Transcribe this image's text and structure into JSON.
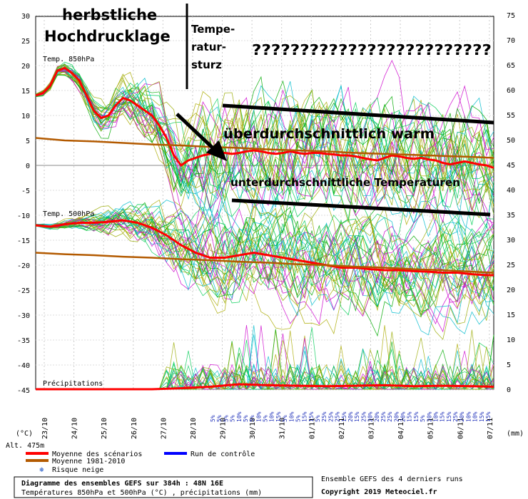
{
  "chart_data": {
    "type": "line",
    "title": "Diagramme des ensembles GEFS sur 384h : 48N 16E",
    "subtitle": "Températures 850hPa et 500hPa (°C) , précipitations (mm)",
    "source_note": "Ensemble GEFS des 4 derniers runs",
    "copyright": "Copyright 2019 Meteociel.fr",
    "altitude": "Alt. 475m",
    "left_unit": "(°C)",
    "right_unit": "(mm)",
    "left_ticks": [
      30,
      25,
      20,
      15,
      10,
      5,
      0,
      -5,
      -10,
      -15,
      -20,
      -25,
      -30,
      -35,
      -40,
      -45
    ],
    "right_ticks": [
      75,
      70,
      65,
      60,
      55,
      50,
      45,
      40,
      35,
      30,
      25,
      20,
      15,
      10,
      5,
      0
    ],
    "x_dates": [
      "23/10",
      "24/10",
      "25/10",
      "26/10",
      "27/10",
      "28/10",
      "29/10",
      "30/10",
      "31/10",
      "01/11",
      "02/11",
      "03/11",
      "04/11",
      "05/11",
      "06/11",
      "07/11"
    ],
    "labels": {
      "t850": "Temp. 850hPa",
      "t500": "Temp. 500hPa",
      "precip": "Précipitations"
    },
    "legend": {
      "mean": "Moyenne des scénarios",
      "control": "Run de contrôle",
      "climate": "Moyenne 1981-2010",
      "snow": "Risque neige"
    },
    "snow_risk": [
      "5%",
      "5%",
      "5%",
      "5%",
      "10%",
      "5%",
      "5%",
      "10%",
      "5%",
      "10%",
      "15%",
      "5%",
      "10%",
      "5%",
      "15%",
      "15%",
      "5%",
      "25%",
      "25%",
      "25%",
      "15%",
      "20%",
      "15%",
      "25%",
      "20%",
      "20%",
      "25%",
      "25%",
      "20%",
      "20%",
      "15%",
      "15%",
      "5%",
      "20%",
      "10%",
      "15%",
      "15%",
      "25%",
      "20%",
      "10%",
      "10%",
      "15%",
      "15%"
    ],
    "series": [
      {
        "name": "Moyenne des scénarios",
        "level": "850hPa",
        "x": [
          0,
          1,
          2,
          3,
          4,
          5,
          6,
          7,
          8,
          9,
          10,
          11,
          12,
          13,
          14,
          15,
          16,
          17,
          18,
          19,
          20,
          21,
          22,
          23,
          24,
          25,
          26,
          27,
          28,
          29,
          30,
          31,
          32,
          33,
          34,
          35,
          36,
          37,
          38,
          39,
          40,
          41,
          42,
          43,
          44,
          45,
          46,
          47,
          48,
          49,
          50,
          51,
          52,
          53,
          54,
          55,
          56,
          57,
          58,
          59,
          60,
          61,
          62,
          63
        ],
        "values": [
          14,
          14.5,
          16,
          19,
          19.5,
          18.5,
          17,
          14,
          11,
          9.5,
          10,
          12,
          13.5,
          13,
          12,
          11,
          10,
          8,
          5.5,
          2,
          0,
          1,
          1.5,
          2,
          2.3,
          2.5,
          2.5,
          2.3,
          2.5,
          2.8,
          3,
          2.8,
          2.5,
          2.3,
          2.5,
          2.8,
          2.5,
          2.3,
          2.5,
          2.5,
          2.3,
          2.2,
          2,
          2,
          1.8,
          1.5,
          1.2,
          1,
          1.5,
          2,
          1.8,
          1.5,
          1.3,
          1.5,
          1.2,
          1,
          0.5,
          0.2,
          0.5,
          0.8,
          0.5,
          0.2,
          0,
          -0.5
        ]
      },
      {
        "name": "Moyenne 1981-2010",
        "level": "850hPa",
        "x": [
          0,
          4,
          8,
          12,
          16,
          20,
          24,
          28,
          32,
          36,
          40,
          44,
          48,
          52,
          56,
          60,
          63
        ],
        "values": [
          5.5,
          5,
          4.8,
          4.5,
          4.2,
          4,
          3.7,
          3.5,
          3.2,
          3,
          2.8,
          2.5,
          2.3,
          2.1,
          1.9,
          1.7,
          1.5
        ]
      },
      {
        "name": "Moyenne des scénarios",
        "level": "500hPa",
        "x": [
          0,
          2,
          4,
          6,
          8,
          10,
          12,
          14,
          16,
          18,
          20,
          22,
          24,
          26,
          28,
          30,
          32,
          34,
          36,
          38,
          40,
          42,
          44,
          46,
          48,
          50,
          52,
          54,
          56,
          58,
          60,
          62,
          63
        ],
        "values": [
          -12,
          -12.3,
          -11.8,
          -11.5,
          -11.5,
          -11.3,
          -11,
          -11.5,
          -12.5,
          -14,
          -16,
          -17.5,
          -18.5,
          -18.5,
          -18,
          -17.5,
          -18,
          -18.5,
          -19,
          -19.5,
          -20,
          -20.5,
          -20.5,
          -20.8,
          -21,
          -21,
          -21.2,
          -21.3,
          -21.5,
          -21.5,
          -21.8,
          -22,
          -22
        ]
      },
      {
        "name": "Moyenne 1981-2010",
        "level": "500hPa",
        "x": [
          0,
          4,
          8,
          12,
          16,
          20,
          24,
          28,
          32,
          36,
          40,
          44,
          48,
          52,
          56,
          60,
          63
        ],
        "values": [
          -17.5,
          -17.8,
          -18,
          -18.3,
          -18.5,
          -18.8,
          -19,
          -19.3,
          -19.5,
          -19.8,
          -20,
          -20.3,
          -20.5,
          -20.8,
          -21,
          -21.3,
          -21.5
        ]
      },
      {
        "name": "Moyenne des scénarios",
        "level": "precip",
        "x": [
          0,
          4,
          8,
          12,
          16,
          20,
          24,
          28,
          32,
          36,
          40,
          44,
          48,
          52,
          56,
          60,
          63
        ],
        "values": [
          0,
          0,
          0,
          0,
          0,
          0.2,
          0.5,
          1,
          0.8,
          0.7,
          0.6,
          0.7,
          0.8,
          0.6,
          0.7,
          0.6,
          0.5
        ]
      }
    ],
    "annotations": [
      {
        "text": "herbstliche",
        "color": "#000000"
      },
      {
        "text": "Hochdrucklage",
        "color": "#000000"
      },
      {
        "text": "Tempe-",
        "color": "#000000"
      },
      {
        "text": "ratur-",
        "color": "#000000"
      },
      {
        "text": "sturz",
        "color": "#000000"
      },
      {
        "text": "?????????????????????????",
        "color": "#000000"
      },
      {
        "text": "überdurchschnittlich warm",
        "color": "#000000"
      },
      {
        "text": "unterdurchschnittliche Temperaturen",
        "color": "#000000"
      }
    ],
    "ylim": [
      -45,
      30
    ],
    "y2lim": [
      0,
      75
    ],
    "grid": true,
    "colors": {
      "mean": "#ff0000",
      "climate": "#b35a00",
      "control": "#0000ff",
      "members": [
        "#00aa00",
        "#00bbcc",
        "#cc00cc",
        "#99aa00",
        "#00cc55",
        "#aaaa00"
      ]
    }
  }
}
